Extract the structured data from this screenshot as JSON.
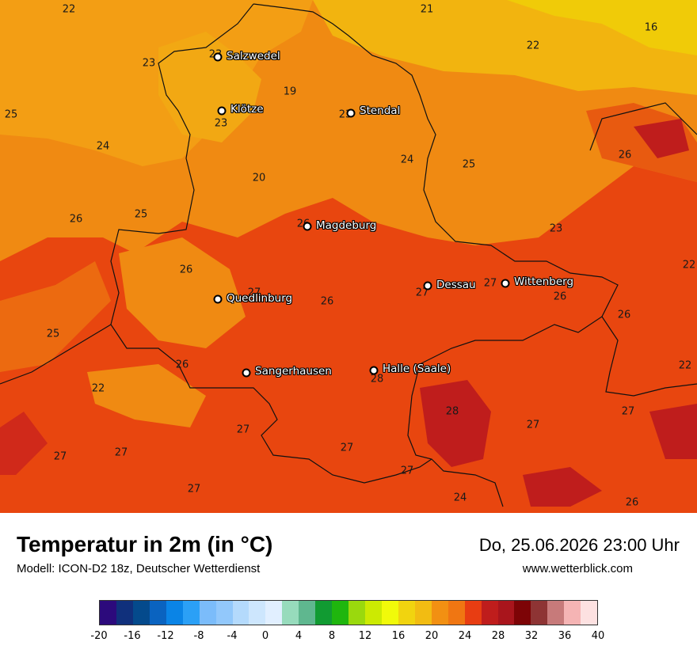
{
  "title": "Temperatur in 2m (in °C)",
  "model": "Modell: ICON-D2 18z, Deutscher Wetterdienst",
  "datetime": "Do, 25.06.2026 23:00 Uhr",
  "website": "www.wetterblick.com",
  "cities": [
    {
      "name": "Salzwedel"
    },
    {
      "name": "Klötze"
    },
    {
      "name": "Stendal"
    },
    {
      "name": "Magdeburg"
    },
    {
      "name": "Quedlinburg"
    },
    {
      "name": "Dessau"
    },
    {
      "name": "Wittenberg"
    },
    {
      "name": "Sangerhausen"
    },
    {
      "name": "Halle (Saale)"
    }
  ],
  "values": [
    "22",
    "21",
    "16",
    "23",
    "23",
    "22",
    "25",
    "19",
    "23",
    "23",
    "24",
    "25",
    "24",
    "20",
    "26",
    "25",
    "26",
    "23",
    "26",
    "22",
    "26",
    "27",
    "27",
    "27",
    "26",
    "26",
    "25",
    "26",
    "26",
    "22",
    "22",
    "28",
    "28",
    "27",
    "27",
    "27",
    "27",
    "27",
    "27",
    "24",
    "27",
    "27"
  ],
  "legend": {
    "colors": [
      "#2c0a7c",
      "#10307c",
      "#044a8c",
      "#0a63c0",
      "#0a84e6",
      "#2ba0f6",
      "#7bbcfa",
      "#92c8fb",
      "#b4dafc",
      "#cde6fd",
      "#e1efff",
      "#97dbbc",
      "#5fb78f",
      "#119b32",
      "#1fb60e",
      "#9ad90d",
      "#ccea02",
      "#f1fa0a",
      "#f1d40f",
      "#f2bc12",
      "#f29012",
      "#f07612",
      "#e83d12",
      "#bf1d1c",
      "#a9151c",
      "#7d0406",
      "#8e3434",
      "#c77a7a",
      "#f5b4b4",
      "#fde1e1"
    ],
    "ticks": [
      "-20",
      "-16",
      "-12",
      "-8",
      "-4",
      "0",
      "4",
      "8",
      "12",
      "16",
      "20",
      "24",
      "28",
      "32",
      "36",
      "40"
    ]
  }
}
